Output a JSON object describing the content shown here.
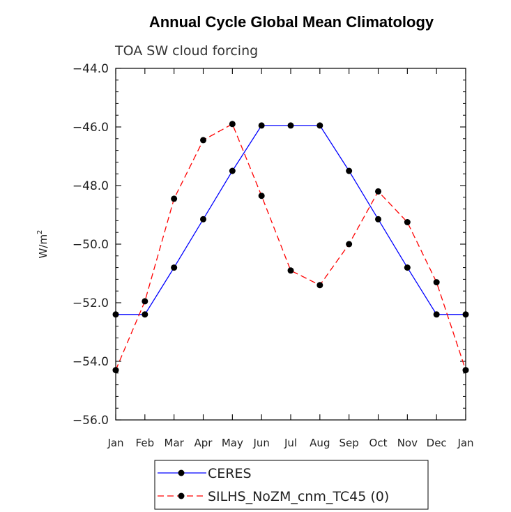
{
  "chart_data": {
    "type": "line",
    "title": "Annual Cycle Global Mean Climatology",
    "subtitle": "TOA SW cloud forcing",
    "ylabel": "W/m",
    "ylabel_sup": "2",
    "xlabel": "",
    "ylim": [
      -56.0,
      -44.0
    ],
    "yticks": [
      -44.0,
      -46.0,
      -48.0,
      -50.0,
      -52.0,
      -54.0,
      -56.0
    ],
    "ytick_labels": [
      "−44.0",
      "−46.0",
      "−48.0",
      "−50.0",
      "−52.0",
      "−54.0",
      "−56.0"
    ],
    "categories": [
      "Jan",
      "Feb",
      "Mar",
      "Apr",
      "May",
      "Jun",
      "Jul",
      "Aug",
      "Sep",
      "Oct",
      "Nov",
      "Dec",
      "Jan"
    ],
    "series": [
      {
        "name": "CERES",
        "color": "#0000ff",
        "dash": "solid",
        "values": [
          -52.4,
          -52.4,
          -50.8,
          -49.15,
          -47.5,
          -45.95,
          -45.95,
          -45.95,
          -47.5,
          -49.15,
          -50.8,
          -52.4,
          -52.4
        ]
      },
      {
        "name": "SILHS_NoZM_cnm_TC45 (0)",
        "color": "#ff0000",
        "dash": "dashed",
        "values": [
          -54.3,
          -51.95,
          -48.45,
          -46.45,
          -45.9,
          -48.35,
          -50.9,
          -51.4,
          -50.0,
          -48.2,
          -49.25,
          -51.3,
          -54.3
        ]
      }
    ],
    "grid": false,
    "legend_position": "bottom-center"
  }
}
